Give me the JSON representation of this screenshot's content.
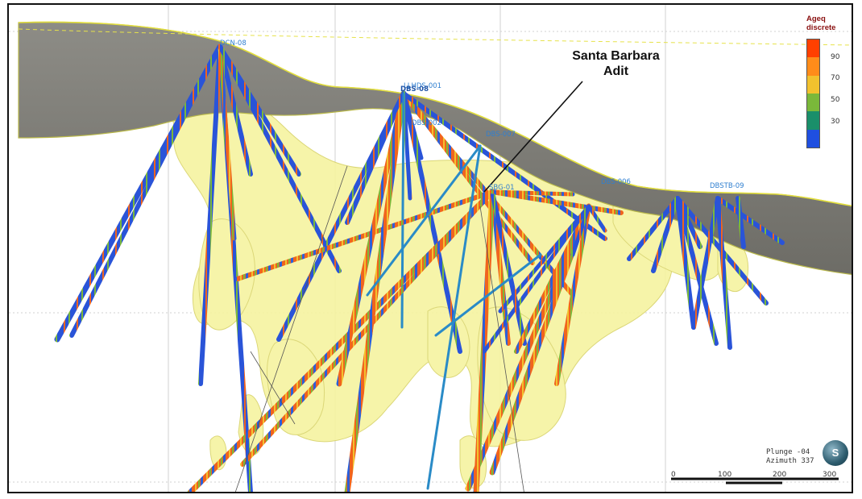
{
  "annotation": {
    "line1": "Santa Barbara",
    "line2": "Adit"
  },
  "legend": {
    "title_line1": "Ageq",
    "title_line2": "discrete",
    "ticks": [
      "90",
      "70",
      "50",
      "30"
    ],
    "colors": [
      "#ff4000",
      "#ff8c1a",
      "#f2c12e",
      "#7ab83a",
      "#1a8f6a",
      "#1f4fe0"
    ]
  },
  "view": {
    "plunge": "Plunge -04",
    "azimuth": "Azimuth 337"
  },
  "scale_bar": {
    "labels": [
      "0",
      "100",
      "200",
      "300"
    ]
  },
  "logo": {
    "text": "S"
  },
  "collars": [
    "DCN-08",
    "LLHDS-001",
    "DBS-08",
    "DBS-002",
    "DBS-007",
    "SBG-01",
    "DBS-006",
    "DBSTB-09"
  ],
  "colors": {
    "terrain": "#7c7b74",
    "terrain_edge": "#dada3a",
    "orebody": "#f6f3a0",
    "hole_low": "#1f4fe0",
    "hole_high": "#f0641e"
  }
}
